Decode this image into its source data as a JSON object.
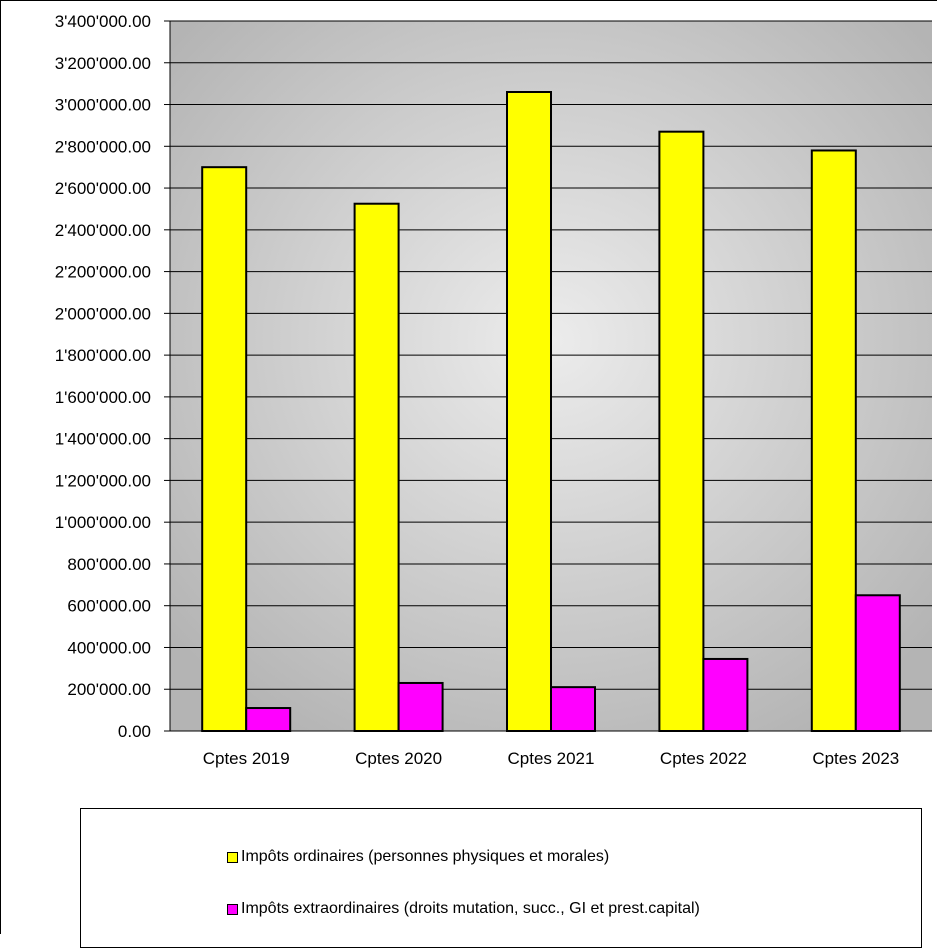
{
  "chart_data": {
    "type": "bar",
    "categories": [
      "Cptes 2019",
      "Cptes 2020",
      "Cptes 2021",
      "Cptes 2022",
      "Cptes 2023"
    ],
    "series": [
      {
        "name": "Impôts ordinaires (personnes physiques et morales)",
        "color": "#ffff00",
        "values": [
          2700000,
          2525000,
          3060000,
          2870000,
          2780000
        ]
      },
      {
        "name": "Impôts extraordinaires (droits mutation, succ., GI et prest.capital)",
        "color": "#ff00ff",
        "values": [
          110000,
          230000,
          210000,
          345000,
          650000
        ]
      }
    ],
    "ylim": [
      0,
      3400000
    ],
    "yticks": [
      0,
      200000,
      400000,
      600000,
      800000,
      1000000,
      1200000,
      1400000,
      1600000,
      1800000,
      2000000,
      2200000,
      2400000,
      2600000,
      2800000,
      3000000,
      3200000,
      3400000
    ],
    "ytick_labels": [
      "0.00",
      "200'000.00",
      "400'000.00",
      "600'000.00",
      "800'000.00",
      "1'000'000.00",
      "1'200'000.00",
      "1'400'000.00",
      "1'600'000.00",
      "1'800'000.00",
      "2'000'000.00",
      "2'200'000.00",
      "2'400'000.00",
      "2'600'000.00",
      "2'800'000.00",
      "3'000'000.00",
      "3'200'000.00",
      "3'400'000.00"
    ],
    "grid": true,
    "legend_position": "bottom",
    "plot_background": "#d9d9d9"
  }
}
